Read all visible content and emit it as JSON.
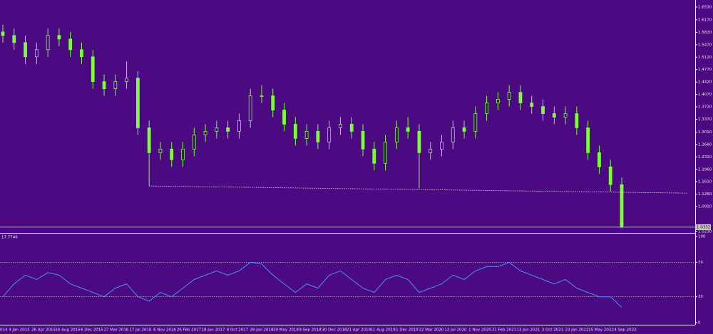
{
  "chart_data": {
    "type": "candlestick",
    "color": "#7cff3a",
    "background": "#4b0a82",
    "open": [
      1.583,
      1.573,
      1.553,
      1.513,
      1.533,
      1.573,
      1.563,
      1.533,
      1.513,
      1.443,
      1.423,
      1.443,
      1.453,
      1.313,
      1.243,
      1.253,
      1.223,
      1.253,
      1.293,
      1.303,
      1.313,
      1.303,
      1.333,
      1.403,
      1.403,
      1.363,
      1.323,
      1.283,
      1.303,
      1.273,
      1.313,
      1.323,
      1.303,
      1.253,
      1.213,
      1.273,
      1.313,
      1.303,
      1.243,
      1.253,
      1.273,
      1.313,
      1.303,
      1.353,
      1.383,
      1.393,
      1.413,
      1.383,
      1.373,
      1.353,
      1.343,
      1.353,
      1.313,
      1.243,
      1.203,
      1.153
    ],
    "high": [
      1.603,
      1.593,
      1.573,
      1.553,
      1.593,
      1.593,
      1.583,
      1.553,
      1.533,
      1.463,
      1.463,
      1.5,
      1.473,
      1.333,
      1.273,
      1.273,
      1.273,
      1.313,
      1.323,
      1.333,
      1.333,
      1.353,
      1.423,
      1.433,
      1.423,
      1.383,
      1.343,
      1.323,
      1.323,
      1.333,
      1.343,
      1.343,
      1.323,
      1.273,
      1.293,
      1.333,
      1.343,
      1.323,
      1.273,
      1.293,
      1.333,
      1.333,
      1.373,
      1.403,
      1.413,
      1.433,
      1.433,
      1.403,
      1.393,
      1.373,
      1.373,
      1.373,
      1.333,
      1.263,
      1.223,
      1.173
    ],
    "low": [
      1.553,
      1.533,
      1.493,
      1.493,
      1.513,
      1.543,
      1.513,
      1.493,
      1.423,
      1.403,
      1.403,
      1.423,
      1.293,
      1.149,
      1.223,
      1.203,
      1.203,
      1.233,
      1.273,
      1.283,
      1.283,
      1.283,
      1.313,
      1.383,
      1.343,
      1.303,
      1.263,
      1.263,
      1.253,
      1.253,
      1.293,
      1.283,
      1.233,
      1.193,
      1.193,
      1.253,
      1.283,
      1.143,
      1.223,
      1.233,
      1.253,
      1.283,
      1.283,
      1.333,
      1.363,
      1.373,
      1.363,
      1.353,
      1.333,
      1.323,
      1.323,
      1.293,
      1.223,
      1.183,
      1.133,
      1.03
    ],
    "close": [
      1.573,
      1.553,
      1.513,
      1.533,
      1.573,
      1.563,
      1.533,
      1.513,
      1.443,
      1.423,
      1.443,
      1.453,
      1.313,
      1.243,
      1.253,
      1.223,
      1.253,
      1.293,
      1.303,
      1.313,
      1.303,
      1.333,
      1.403,
      1.403,
      1.363,
      1.323,
      1.283,
      1.303,
      1.273,
      1.313,
      1.323,
      1.303,
      1.253,
      1.213,
      1.273,
      1.313,
      1.303,
      1.243,
      1.253,
      1.273,
      1.313,
      1.303,
      1.353,
      1.383,
      1.393,
      1.413,
      1.383,
      1.373,
      1.353,
      1.343,
      1.353,
      1.313,
      1.243,
      1.203,
      1.153,
      1.0332
    ],
    "trendline": [
      1.149,
      1.129
    ],
    "ylim": [
      1.017,
      1.673
    ],
    "yticks": [
      {
        "value": 1.653,
        "label": "1.6530"
      },
      {
        "value": 1.617,
        "label": "1.6170"
      },
      {
        "value": 1.582,
        "label": "1.5820"
      },
      {
        "value": 1.547,
        "label": "1.5470"
      },
      {
        "value": 1.512,
        "label": "1.5120"
      },
      {
        "value": 1.477,
        "label": "1.4770"
      },
      {
        "value": 1.442,
        "label": "1.4420"
      },
      {
        "value": 1.407,
        "label": "1.4070"
      },
      {
        "value": 1.372,
        "label": "1.3720"
      },
      {
        "value": 1.337,
        "label": "1.3370"
      },
      {
        "value": 1.301,
        "label": "1.3010"
      },
      {
        "value": 1.266,
        "label": "1.2660"
      },
      {
        "value": 1.231,
        "label": "1.2310"
      },
      {
        "value": 1.196,
        "label": "1.1960"
      },
      {
        "value": 1.161,
        "label": "1.1610"
      },
      {
        "value": 1.126,
        "label": "1.1260"
      },
      {
        "value": 1.091,
        "label": "1.0910"
      },
      {
        "value": 1.021,
        "label": "1.0210"
      }
    ],
    "xlabels": [
      "014",
      "4 Jan 2015",
      "26 Apr 2015",
      "16 Aug 2015",
      "6 Dec 2015",
      "27 Mar 2016",
      "17 Jul 2016",
      "6 Nov 2016",
      "26 Feb 2017",
      "18 Jun 2017",
      "8 Oct 2017",
      "28 Jan 2018",
      "20 May 2018",
      "9 Sep 2018",
      "30 Dec 2018",
      "21 Apr 2019",
      "11 Aug 2019",
      "1 Dec 2019",
      "22 Mar 2020",
      "12 Jul 2020",
      "1 Nov 2020",
      "21 Feb 2021",
      "13 Jun 2021",
      "3 Oct 2021",
      "23 Jan 2022",
      "15 May 2022",
      "4 Sep 2022"
    ],
    "indicator": {
      "type": "line",
      "color": "#4d8dff",
      "values": [
        30,
        45,
        55,
        50,
        58,
        55,
        45,
        40,
        35,
        30,
        40,
        45,
        30,
        25,
        35,
        30,
        40,
        50,
        55,
        60,
        55,
        60,
        70,
        68,
        55,
        45,
        35,
        45,
        40,
        55,
        60,
        50,
        40,
        35,
        50,
        55,
        50,
        35,
        40,
        45,
        55,
        50,
        60,
        65,
        65,
        70,
        60,
        55,
        50,
        45,
        50,
        40,
        35,
        30,
        30,
        17.7746
      ],
      "levels": [
        70,
        30
      ],
      "ylim": [
        0,
        100
      ],
      "yticks": [
        100,
        70,
        30,
        0
      ]
    }
  }
}
